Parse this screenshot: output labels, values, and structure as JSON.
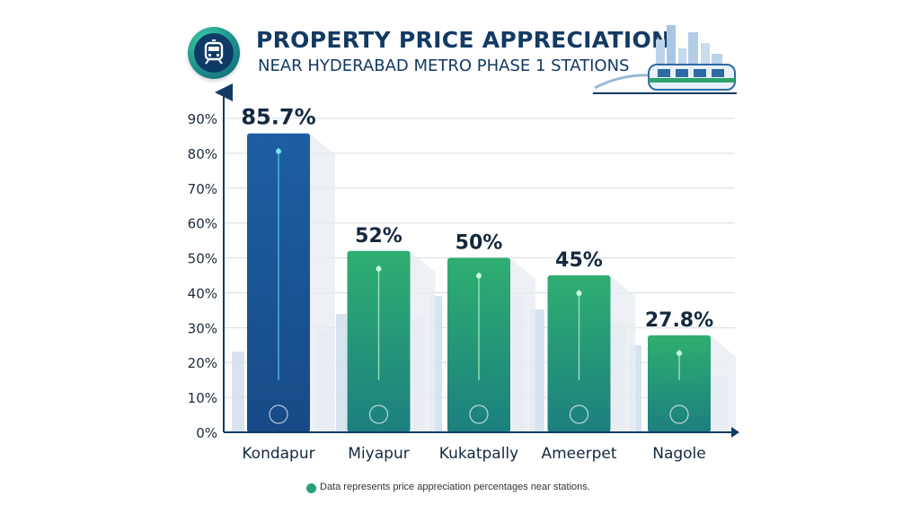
{
  "header": {
    "title": "PROPERTY PRICE APPRECIATION",
    "subtitle": "NEAR HYDERABAD METRO PHASE 1 STATIONS",
    "logo_icon": "metro-train-icon"
  },
  "footer": {
    "note": "Data represents price appreciation percentages near stations."
  },
  "colors": {
    "title": "#123a63",
    "bar_blue": "#1c5a9c",
    "bar_green": "#2ea36e",
    "accent": "#2a9d7e"
  },
  "chart_data": {
    "type": "bar",
    "categories": [
      "Kondapur",
      "Miyapur",
      "Kukatpally",
      "Ameerpet",
      "Nagole"
    ],
    "values": [
      85.7,
      52,
      50,
      45,
      27.8
    ],
    "value_labels": [
      "85.7%",
      "52%",
      "50%",
      "45%",
      "27.8%"
    ],
    "bar_colors": [
      "#1c5a9c",
      "#2ea36e",
      "#2ea36e",
      "#2ea36e",
      "#2ea36e"
    ],
    "bar_icons": [
      "growth-chart-icon",
      "location-pin-icon",
      "growth-chart-icon",
      "compass-icon",
      "buildings-icon"
    ],
    "y_ticks": [
      0,
      10,
      20,
      30,
      40,
      50,
      60,
      70,
      80,
      90
    ],
    "y_tick_labels": [
      "0%",
      "10%",
      "20%",
      "30%",
      "40%",
      "50%",
      "60%",
      "70%",
      "80%",
      "90%"
    ],
    "ylim": [
      0,
      90
    ],
    "grid": true,
    "title": "PROPERTY PRICE APPRECIATION",
    "xlabel": "",
    "ylabel": ""
  }
}
